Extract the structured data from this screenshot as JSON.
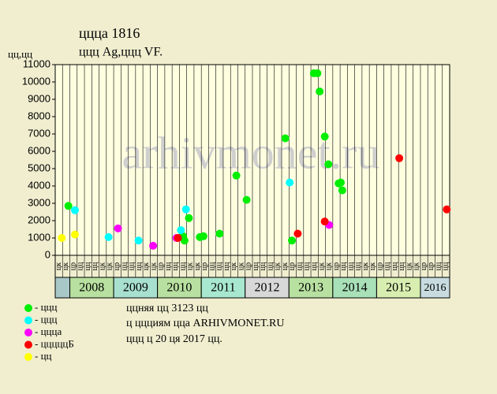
{
  "chart_data": {
    "type": "scatter",
    "title": "ццца 1816",
    "subtitle": "ццц Ag,ццц VF.",
    "y_label": "цц,цц",
    "watermark": "arhivmonet.ru",
    "notes": [
      "ццняя цц 3123 цц",
      "ц ццциям цца ARHIVMONET.RU",
      "ццц ц 20 ця 2017 цц."
    ],
    "categories": [
      "цк",
      "цк",
      "цр",
      "цц",
      "цц",
      "цц",
      "цк",
      "цк",
      "цр",
      "цц",
      "цц",
      "цц",
      "цк",
      "цк",
      "цр",
      "цц",
      "цц",
      "цц",
      "цк",
      "цк",
      "цр",
      "цц",
      "цц",
      "цц",
      "цк",
      "цк",
      "цр",
      "цц",
      "цц",
      "цц",
      "цк",
      "цк",
      "цр",
      "цц",
      "цц",
      "цц",
      "цк",
      "цк",
      "цр",
      "цц",
      "цц",
      "цц",
      "цк",
      "цк",
      "цр",
      "цц",
      "цц",
      "цц",
      "цк",
      "цк",
      "цр",
      "цр",
      "цц",
      "цц"
    ],
    "years": [
      null,
      "2008",
      "2009",
      "2010",
      "2011",
      "2012",
      "2013",
      "2014",
      "2015",
      "2016"
    ],
    "year_colors": [
      "#a8c8c8",
      "#b8e0a0",
      "#a8e0d0",
      "#b8e0a0",
      "#a8e8d0",
      "#d8d8d8",
      "#b8e0a0",
      "#a8e0b8",
      "#d8eeb0",
      "#c8dce0"
    ],
    "xlim": [
      0,
      54
    ],
    "ylim": [
      0,
      11000
    ],
    "yticks": [
      0,
      1000,
      2000,
      3000,
      4000,
      5000,
      6000,
      7000,
      8000,
      9000,
      10000,
      11000
    ],
    "series": [
      {
        "name": "- ццц",
        "color": "#00ee00",
        "x": [
          1.8,
          17.5,
          17.7,
          18.3,
          19.8,
          20.3,
          22.5,
          24.8,
          26.2,
          31.5,
          32.4,
          35.4,
          35.9,
          36.2,
          36.9,
          37.4,
          38.8,
          39.1,
          39.3
        ],
        "values": [
          2850,
          1100,
          850,
          2150,
          1050,
          1100,
          1250,
          4600,
          3200,
          6750,
          850,
          10500,
          10500,
          9450,
          6850,
          5250,
          4150,
          4200,
          3750
        ]
      },
      {
        "name": "- ццц",
        "color": "#00ffff",
        "x": [
          2.7,
          7.3,
          11.4,
          17.2,
          17.9,
          32.1
        ],
        "values": [
          2600,
          1050,
          850,
          1450,
          2650,
          4200
        ]
      },
      {
        "name": "- ццца",
        "color": "#ff00ff",
        "x": [
          8.6,
          13.4,
          16.6,
          37.5
        ],
        "values": [
          1550,
          550,
          1000,
          1750
        ]
      },
      {
        "name": "- цццццБ",
        "color": "#ff0000",
        "x": [
          16.8,
          33.2,
          36.9,
          47.1,
          53.6
        ],
        "values": [
          1000,
          1250,
          1950,
          5600,
          2650
        ]
      },
      {
        "name": "- цц",
        "color": "#ffff00",
        "x": [
          0.9,
          2.7
        ],
        "values": [
          1000,
          1200
        ]
      }
    ]
  }
}
